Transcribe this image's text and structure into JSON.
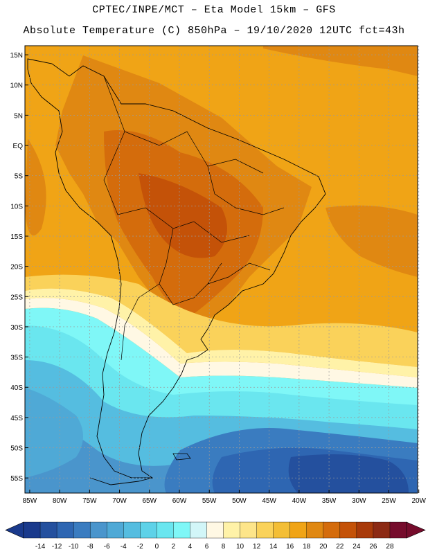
{
  "header": {
    "line1": "CPTEC/INPE/MCT –  Eta Model 15km – GFS",
    "line2": "Absolute Temperature (C) 850hPa – 19/10/2020 12UTC fct=43h"
  },
  "map": {
    "lat_labels": [
      "15N",
      "10N",
      "5N",
      "EQ",
      "5S",
      "10S",
      "15S",
      "20S",
      "25S",
      "30S",
      "35S",
      "40S",
      "45S",
      "50S",
      "55S"
    ],
    "lon_labels": [
      "85W",
      "80W",
      "75W",
      "70W",
      "65W",
      "60W",
      "55W",
      "50W",
      "45W",
      "40W",
      "35W",
      "30W",
      "25W",
      "20W"
    ],
    "lat_values": [
      15,
      10,
      5,
      0,
      -5,
      -10,
      -15,
      -20,
      -25,
      -30,
      -35,
      -40,
      -45,
      -50,
      -55
    ],
    "lon_values": [
      -85,
      -80,
      -75,
      -70,
      -65,
      -60,
      -55,
      -50,
      -45,
      -40,
      -35,
      -30,
      -25,
      -20
    ],
    "lat_range": [
      -57.5,
      16.5
    ],
    "lon_range": [
      -85.8,
      -20.2
    ]
  },
  "legend": {
    "labels": [
      "-14",
      "-12",
      "-10",
      "-8",
      "-6",
      "-4",
      "-2",
      "0",
      "2",
      "4",
      "6",
      "8",
      "10",
      "12",
      "14",
      "16",
      "18",
      "20",
      "22",
      "24",
      "26",
      "28"
    ],
    "colors": [
      "#1a3a8c",
      "#24509e",
      "#2e66b2",
      "#3a7cc0",
      "#4a95cc",
      "#4fa9d6",
      "#55bde0",
      "#5ed2e8",
      "#6ae6ef",
      "#7ff7f7",
      "#d2f6f8",
      "#fff8e4",
      "#fff2a8",
      "#fde58a",
      "#fad25a",
      "#f3be36",
      "#f0a416",
      "#e08812",
      "#d46c0c",
      "#c45208",
      "#a83a0a",
      "#8c2a14",
      "#760c2c"
    ]
  }
}
